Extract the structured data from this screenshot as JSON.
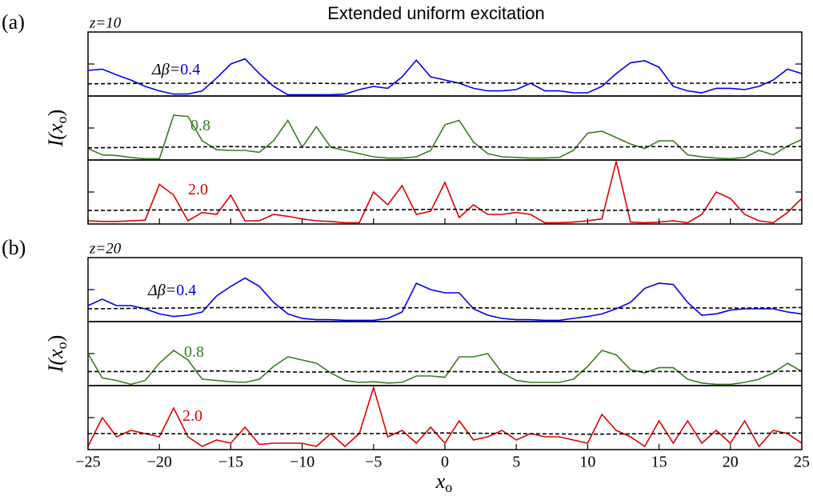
{
  "chart_data": {
    "type": "line",
    "title": "Extended uniform excitation",
    "xlabel": {
      "main": "x",
      "sub": "o"
    },
    "ylabel": {
      "main": "I(x",
      "sub": "o",
      "close": ")"
    },
    "xlim": [
      -25,
      25
    ],
    "xticks": [
      {
        "value": -25,
        "label": "−25"
      },
      {
        "value": -20,
        "label": "−20"
      },
      {
        "value": -15,
        "label": "−15"
      },
      {
        "value": -10,
        "label": "−10"
      },
      {
        "value": -5,
        "label": "−5"
      },
      0,
      5,
      10,
      15,
      20,
      25
    ],
    "ylim": [
      0,
      1
    ],
    "yticks": [
      0.5
    ],
    "x": [
      -25,
      -24,
      -23,
      -22,
      -21,
      -20,
      -19,
      -18,
      -17,
      -16,
      -15,
      -14,
      -13,
      -12,
      -11,
      -10,
      -9,
      -8,
      -7,
      -6,
      -5,
      -4,
      -3,
      -2,
      -1,
      0,
      1,
      2,
      3,
      4,
      5,
      6,
      7,
      8,
      9,
      10,
      11,
      12,
      13,
      14,
      15,
      16,
      17,
      18,
      19,
      20,
      21,
      22,
      23,
      24,
      25
    ],
    "groups": [
      {
        "tag": "(a)",
        "z": "z=10",
        "subplots": [
          {
            "annotation": "Δβ=",
            "series": [
              {
                "name": "0.4",
                "color": "#0000ee",
                "values": [
                  0.4,
                  0.42,
                  0.33,
                  0.25,
                  0.15,
                  0.08,
                  0.03,
                  0.03,
                  0.08,
                  0.28,
                  0.5,
                  0.58,
                  0.35,
                  0.15,
                  0.02,
                  0.02,
                  0.02,
                  0.02,
                  0.03,
                  0.1,
                  0.15,
                  0.12,
                  0.3,
                  0.56,
                  0.3,
                  0.25,
                  0.2,
                  0.12,
                  0.08,
                  0.08,
                  0.1,
                  0.2,
                  0.08,
                  0.08,
                  0.05,
                  0.05,
                  0.15,
                  0.35,
                  0.52,
                  0.55,
                  0.45,
                  0.15,
                  0.08,
                  0.05,
                  0.12,
                  0.12,
                  0.1,
                  0.15,
                  0.25,
                  0.42,
                  0.35
                ]
              },
              {
                "style": "dashed",
                "color": "#000000",
                "x": [
                  -25,
                  -20,
                  -15,
                  -10,
                  -5,
                  0,
                  5,
                  10,
                  15,
                  20,
                  25
                ],
                "values": [
                  0.19,
                  0.2,
                  0.2,
                  0.2,
                  0.19,
                  0.21,
                  0.2,
                  0.19,
                  0.2,
                  0.2,
                  0.21
                ]
              }
            ]
          },
          {
            "series": [
              {
                "name": "0.8",
                "color": "#3a7d22",
                "values": [
                  0.18,
                  0.08,
                  0.07,
                  0.04,
                  0.02,
                  0.02,
                  0.7,
                  0.68,
                  0.3,
                  0.16,
                  0.15,
                  0.15,
                  0.12,
                  0.3,
                  0.62,
                  0.2,
                  0.52,
                  0.2,
                  0.15,
                  0.1,
                  0.05,
                  0.03,
                  0.03,
                  0.05,
                  0.15,
                  0.55,
                  0.62,
                  0.28,
                  0.1,
                  0.05,
                  0.04,
                  0.03,
                  0.03,
                  0.04,
                  0.15,
                  0.42,
                  0.45,
                  0.35,
                  0.25,
                  0.18,
                  0.3,
                  0.3,
                  0.08,
                  0.05,
                  0.03,
                  0.02,
                  0.04,
                  0.15,
                  0.08,
                  0.22,
                  0.32
                ]
              },
              {
                "style": "dashed",
                "color": "#000000",
                "x": [
                  -25,
                  -20,
                  -15,
                  -10,
                  -5,
                  0,
                  5,
                  10,
                  15,
                  20,
                  25
                ],
                "values": [
                  0.19,
                  0.2,
                  0.21,
                  0.2,
                  0.2,
                  0.21,
                  0.2,
                  0.2,
                  0.21,
                  0.2,
                  0.21
                ]
              }
            ]
          },
          {
            "series": [
              {
                "name": "2.0",
                "color": "#dd0000",
                "values": [
                  0.05,
                  0.04,
                  0.04,
                  0.05,
                  0.06,
                  0.62,
                  0.45,
                  0.05,
                  0.18,
                  0.15,
                  0.45,
                  0.05,
                  0.05,
                  0.15,
                  0.12,
                  0.08,
                  0.05,
                  0.04,
                  0.02,
                  0.02,
                  0.5,
                  0.3,
                  0.6,
                  0.15,
                  0.2,
                  0.65,
                  0.1,
                  0.3,
                  0.15,
                  0.15,
                  0.18,
                  0.15,
                  0.02,
                  0.02,
                  0.03,
                  0.05,
                  0.08,
                  0.98,
                  0.03,
                  0.02,
                  0.03,
                  0.05,
                  0.02,
                  0.15,
                  0.5,
                  0.4,
                  0.15,
                  0.05,
                  0.02,
                  0.18,
                  0.4
                ]
              },
              {
                "style": "dashed",
                "color": "#000000",
                "x": [
                  -25,
                  -20,
                  -15,
                  -10,
                  -5,
                  0,
                  5,
                  10,
                  15,
                  20,
                  25
                ],
                "values": [
                  0.21,
                  0.22,
                  0.22,
                  0.21,
                  0.22,
                  0.23,
                  0.22,
                  0.21,
                  0.22,
                  0.23,
                  0.22
                ]
              }
            ]
          }
        ]
      },
      {
        "tag": "(b)",
        "z": "z=20",
        "subplots": [
          {
            "annotation": "Δβ=",
            "series": [
              {
                "name": "0.4",
                "color": "#0000ee",
                "values": [
                  0.25,
                  0.35,
                  0.25,
                  0.25,
                  0.2,
                  0.12,
                  0.08,
                  0.1,
                  0.15,
                  0.4,
                  0.55,
                  0.68,
                  0.55,
                  0.3,
                  0.12,
                  0.05,
                  0.03,
                  0.03,
                  0.02,
                  0.02,
                  0.02,
                  0.05,
                  0.15,
                  0.6,
                  0.5,
                  0.45,
                  0.45,
                  0.2,
                  0.1,
                  0.05,
                  0.03,
                  0.03,
                  0.02,
                  0.02,
                  0.05,
                  0.08,
                  0.12,
                  0.2,
                  0.3,
                  0.52,
                  0.6,
                  0.58,
                  0.3,
                  0.1,
                  0.12,
                  0.18,
                  0.2,
                  0.2,
                  0.2,
                  0.15,
                  0.12
                ]
              },
              {
                "style": "dashed",
                "color": "#000000",
                "x": [
                  -25,
                  -20,
                  -15,
                  -10,
                  -5,
                  0,
                  5,
                  10,
                  15,
                  20,
                  25
                ],
                "values": [
                  0.2,
                  0.21,
                  0.22,
                  0.22,
                  0.21,
                  0.22,
                  0.21,
                  0.2,
                  0.22,
                  0.21,
                  0.22
                ]
              }
            ]
          },
          {
            "series": [
              {
                "name": "0.8",
                "color": "#3a7d22",
                "values": [
                  0.5,
                  0.12,
                  0.08,
                  0.02,
                  0.08,
                  0.35,
                  0.55,
                  0.4,
                  0.1,
                  0.08,
                  0.06,
                  0.05,
                  0.1,
                  0.3,
                  0.45,
                  0.4,
                  0.35,
                  0.2,
                  0.08,
                  0.05,
                  0.06,
                  0.04,
                  0.05,
                  0.15,
                  0.15,
                  0.13,
                  0.45,
                  0.45,
                  0.5,
                  0.2,
                  0.08,
                  0.05,
                  0.05,
                  0.05,
                  0.1,
                  0.3,
                  0.55,
                  0.48,
                  0.25,
                  0.2,
                  0.28,
                  0.28,
                  0.1,
                  0.04,
                  0.02,
                  0.02,
                  0.05,
                  0.1,
                  0.2,
                  0.35,
                  0.22
                ]
              },
              {
                "style": "dashed",
                "color": "#000000",
                "x": [
                  -25,
                  -20,
                  -15,
                  -10,
                  -5,
                  0,
                  5,
                  10,
                  15,
                  20,
                  25
                ],
                "values": [
                  0.22,
                  0.22,
                  0.23,
                  0.21,
                  0.22,
                  0.22,
                  0.21,
                  0.22,
                  0.22,
                  0.21,
                  0.23
                ]
              }
            ]
          },
          {
            "series": [
              {
                "name": "2.0",
                "color": "#dd0000",
                "values": [
                  0.05,
                  0.5,
                  0.2,
                  0.3,
                  0.25,
                  0.2,
                  0.65,
                  0.2,
                  0.05,
                  0.15,
                  0.1,
                  0.35,
                  0.08,
                  0.1,
                  0.1,
                  0.1,
                  0.05,
                  0.25,
                  0.05,
                  0.25,
                  0.97,
                  0.2,
                  0.3,
                  0.1,
                  0.35,
                  0.1,
                  0.45,
                  0.15,
                  0.2,
                  0.3,
                  0.15,
                  0.25,
                  0.2,
                  0.2,
                  0.15,
                  0.1,
                  0.55,
                  0.3,
                  0.2,
                  0.05,
                  0.45,
                  0.1,
                  0.45,
                  0.1,
                  0.3,
                  0.1,
                  0.45,
                  0.05,
                  0.3,
                  0.25,
                  0.1
                ]
              },
              {
                "style": "dashed",
                "color": "#000000",
                "x": [
                  -25,
                  -20,
                  -15,
                  -10,
                  -5,
                  0,
                  5,
                  10,
                  15,
                  20,
                  25
                ],
                "values": [
                  0.25,
                  0.25,
                  0.24,
                  0.25,
                  0.25,
                  0.26,
                  0.25,
                  0.24,
                  0.25,
                  0.25,
                  0.26
                ]
              }
            ]
          }
        ]
      }
    ]
  }
}
